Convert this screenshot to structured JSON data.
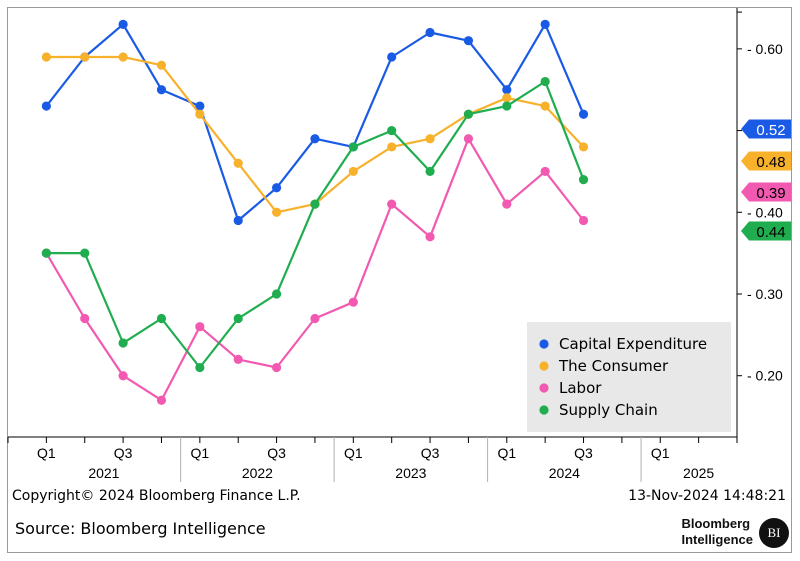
{
  "chart_data": {
    "type": "line",
    "categories": [
      "Q1 2021",
      "Q2 2021",
      "Q3 2021",
      "Q4 2021",
      "Q1 2022",
      "Q2 2022",
      "Q3 2022",
      "Q4 2022",
      "Q1 2023",
      "Q2 2023",
      "Q3 2023",
      "Q4 2023",
      "Q1 2024",
      "Q2 2024",
      "Q3 2024"
    ],
    "series": [
      {
        "name": "Capital Expenditure",
        "color": "#1a5be6",
        "values": [
          0.53,
          0.59,
          0.63,
          0.55,
          0.53,
          0.39,
          0.43,
          0.49,
          0.48,
          0.59,
          0.62,
          0.61,
          0.55,
          0.63,
          0.52
        ],
        "last_label": "0.52"
      },
      {
        "name": "The Consumer",
        "color": "#f8b12b",
        "values": [
          0.59,
          0.59,
          0.59,
          0.58,
          0.52,
          0.46,
          0.4,
          0.41,
          0.45,
          0.48,
          0.49,
          0.52,
          0.54,
          0.53,
          0.48
        ],
        "last_label": "0.48"
      },
      {
        "name": "Labor",
        "color": "#f25ab1",
        "values": [
          0.35,
          0.27,
          0.2,
          0.17,
          0.26,
          0.22,
          0.21,
          0.27,
          0.29,
          0.41,
          0.37,
          0.49,
          0.41,
          0.45,
          0.39
        ],
        "last_label": "0.39"
      },
      {
        "name": "Supply Chain",
        "color": "#1fad4f",
        "values": [
          0.35,
          0.35,
          0.24,
          0.27,
          0.21,
          0.27,
          0.3,
          0.41,
          0.48,
          0.5,
          0.45,
          0.52,
          0.53,
          0.56,
          0.44
        ],
        "last_label": "0.44"
      }
    ],
    "yaxis": {
      "ticks": [
        0.2,
        0.3,
        0.4,
        0.5,
        0.6
      ],
      "tick_labels": [
        "0.20",
        "0.30",
        "0.40",
        "0.50",
        "0.60"
      ],
      "ylim": [
        0.125,
        0.65
      ],
      "side": "right"
    },
    "xaxis": {
      "quarter_ticks": [
        {
          "label": "Q1",
          "index": 0
        },
        {
          "label": "Q3",
          "index": 2
        },
        {
          "label": "Q1",
          "index": 4
        },
        {
          "label": "Q3",
          "index": 6
        },
        {
          "label": "Q1",
          "index": 8
        },
        {
          "label": "Q3",
          "index": 10
        },
        {
          "label": "Q1",
          "index": 12
        },
        {
          "label": "Q3",
          "index": 14
        },
        {
          "label": "Q1",
          "index": 16
        }
      ],
      "years": [
        {
          "label": "2021",
          "center": 1.5
        },
        {
          "label": "2022",
          "center": 5.5
        },
        {
          "label": "2023",
          "center": 9.5
        },
        {
          "label": "2024",
          "center": 13.5
        },
        {
          "label": "2025",
          "center": 17
        }
      ],
      "range": [
        -1,
        18
      ]
    },
    "legend_position": "bottom-right",
    "grid": false
  },
  "footer": {
    "copyright": "Copyright© 2024 Bloomberg Finance L.P.",
    "timestamp": "13-Nov-2024 14:48:21",
    "source": "Source: Bloomberg Intelligence",
    "brand_line1": "Bloomberg",
    "brand_line2": "Intelligence",
    "logo_text": "BI"
  }
}
